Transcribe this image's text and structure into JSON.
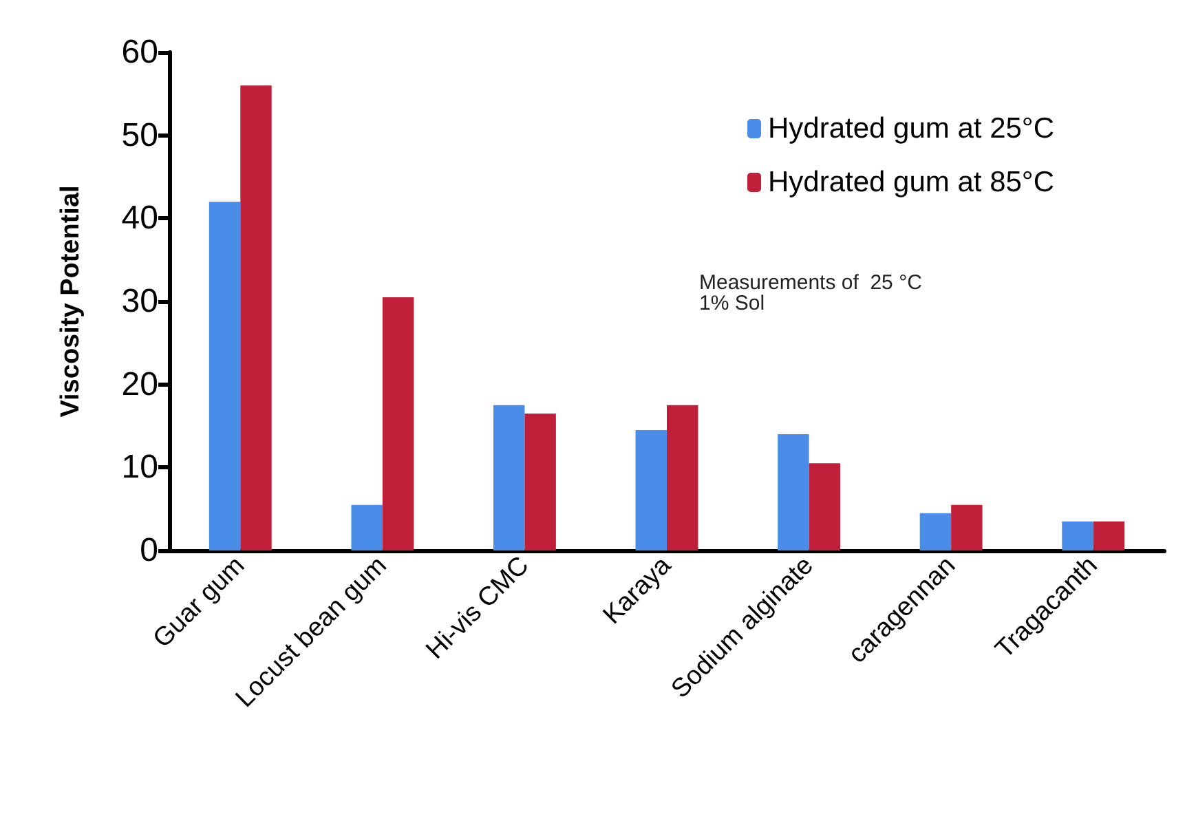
{
  "chart_data": {
    "type": "bar",
    "ylabel": "Viscosity Potential",
    "categories": [
      "Guar gum",
      "Locust bean gum",
      "Hi-vis CMC",
      "Karaya",
      "Sodium alginate",
      "caragennan",
      "Tragacanth"
    ],
    "series": [
      {
        "name": "Hydrated gum at 25°C",
        "color": "#4a8de8",
        "values": [
          42,
          5.5,
          17.5,
          14.5,
          14,
          4.5,
          3.5
        ]
      },
      {
        "name": "Hydrated gum at 85°C",
        "color": "#c01f3a",
        "values": [
          56,
          30.5,
          16.5,
          17.5,
          10.5,
          5.5,
          3.5
        ]
      }
    ],
    "ylim": [
      0,
      60
    ],
    "yticks": [
      0,
      10,
      20,
      30,
      40,
      50,
      60
    ],
    "grid": false,
    "legend": "top right",
    "annotations": [
      "Measurements of  25 °C\n1% Sol"
    ]
  }
}
